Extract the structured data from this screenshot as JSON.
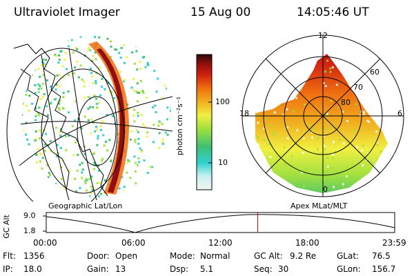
{
  "header": {
    "instrument": "Ultraviolet Imager",
    "date": "15 Aug 00",
    "time": "14:05:46 UT"
  },
  "left_map": {
    "caption": "Geographic Lat/Lon"
  },
  "right_map": {
    "caption": "Apex MLat/MLT",
    "mlt_labels": [
      "12",
      "18",
      "6",
      "0"
    ],
    "mlat_labels": [
      "60",
      "70",
      "80"
    ]
  },
  "colorbar": {
    "unit_label": "photon cm⁻²s⁻¹",
    "ticks": [
      "100",
      "10"
    ]
  },
  "altitude_plot": {
    "ylabel": "GC Alt",
    "y_ticks": [
      "9.0",
      "1.8"
    ],
    "x_ticks": [
      "00:00",
      "06:00",
      "12:00",
      "18:00",
      "23:59"
    ],
    "current_time_fraction": 0.607
  },
  "status": {
    "row1": [
      {
        "label": "Flt:",
        "value": "1356"
      },
      {
        "label": "Door:",
        "value": "Open"
      },
      {
        "label": "Mode:",
        "value": "Normal"
      },
      {
        "label": "GC Alt:",
        "value": "9.2 Re"
      },
      {
        "label": "GLat:",
        "value": "76.5"
      }
    ],
    "row2": [
      {
        "label": "IP:",
        "value": "18.0"
      },
      {
        "label": "Gain:",
        "value": "13"
      },
      {
        "label": "Dsp:",
        "value": "5.1"
      },
      {
        "label": "Seq:",
        "value": "30"
      },
      {
        "label": "GLon:",
        "value": "156.7"
      }
    ]
  },
  "colors": {
    "red_marker": "#cc0000",
    "scale": [
      "#f4f4f4",
      "#c8f0f0",
      "#30d0d0",
      "#40c070",
      "#a0e040",
      "#f0f040",
      "#f0b020",
      "#f07010",
      "#d02010",
      "#901010",
      "#300808"
    ]
  }
}
